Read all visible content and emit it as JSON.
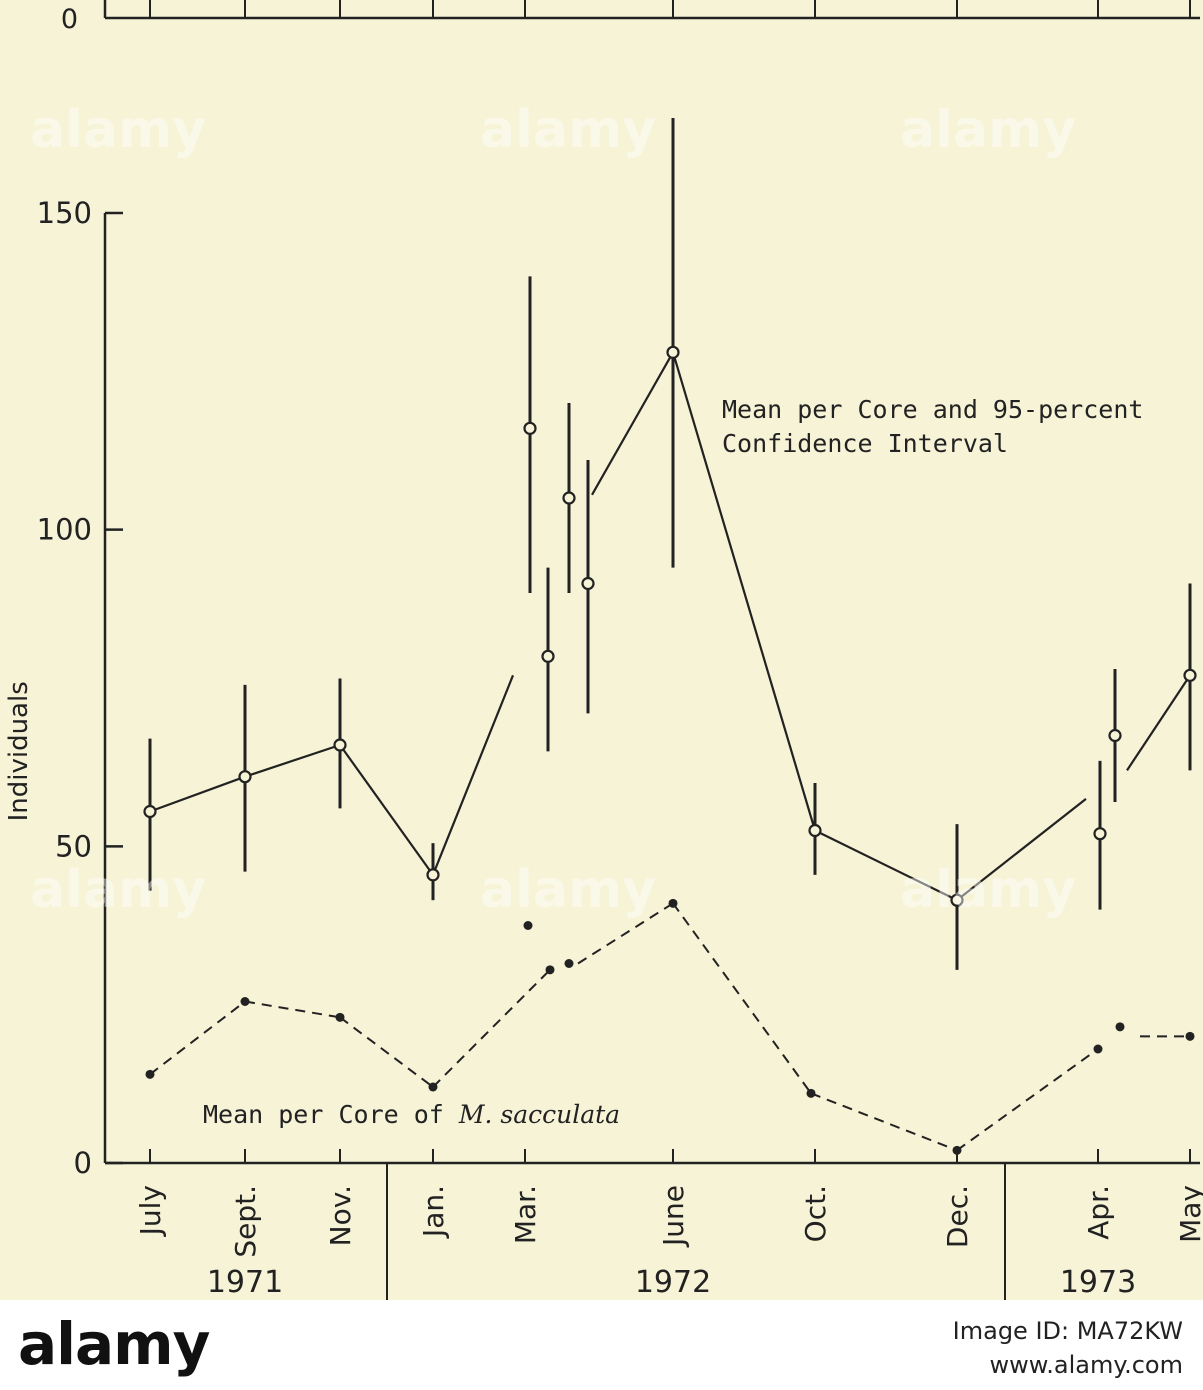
{
  "chart_data": {
    "type": "line",
    "ylabel": "Individuals",
    "ylim": [
      0,
      150
    ],
    "yticks": [
      0,
      50,
      100,
      150
    ],
    "top_axis_zero_label": "0",
    "categories": [
      "July",
      "Sept.",
      "Nov.",
      "Jan.",
      "Mar.",
      "June",
      "Oct.",
      "Dec.",
      "Apr.",
      "May"
    ],
    "years": [
      "1971",
      "1972",
      "1973"
    ],
    "series": [
      {
        "name": "Mean per Core and 95-percent Confidence Interval",
        "style": "solid-with-open-circles",
        "points": [
          {
            "x": "July",
            "y": 55.5,
            "low": 43,
            "high": 67
          },
          {
            "x": "Sept.",
            "y": 61,
            "low": 46,
            "high": 75.5
          },
          {
            "x": "Nov.",
            "y": 66,
            "low": 56,
            "high": 76.5
          },
          {
            "x": "Jan.",
            "y": 45.5,
            "low": 41.5,
            "high": 50.5
          },
          {
            "x": "Mar.",
            "y": 116,
            "low": 90,
            "high": 140
          },
          {
            "x": "Mar.",
            "y": 80,
            "low": 65,
            "high": 94
          },
          {
            "x": "Mar.",
            "y": 105,
            "low": 90,
            "high": 120
          },
          {
            "x": "Mar.",
            "y": 91.5,
            "low": 71,
            "high": 111
          },
          {
            "x": "June",
            "y": 128,
            "low": 94,
            "high": 165
          },
          {
            "x": "Oct.",
            "y": 52.5,
            "low": 45.5,
            "high": 60
          },
          {
            "x": "Dec.",
            "y": 41.5,
            "low": 30.5,
            "high": 53.5
          },
          {
            "x": "Apr.",
            "y": 52,
            "low": 40,
            "high": 63.5
          },
          {
            "x": "Apr.",
            "y": 67.5,
            "low": 57,
            "high": 78
          },
          {
            "x": "May",
            "y": 77,
            "low": 62,
            "high": 91.5
          }
        ]
      },
      {
        "name": "Mean per Core of M. sacculata",
        "style": "dashed-with-dots",
        "points": [
          {
            "x": "July",
            "y": 14
          },
          {
            "x": "Sept.",
            "y": 25.5
          },
          {
            "x": "Nov.",
            "y": 23
          },
          {
            "x": "Jan.",
            "y": 12
          },
          {
            "x": "Mar.",
            "y": 37.5
          },
          {
            "x": "Mar.",
            "y": 30.5
          },
          {
            "x": "Mar.",
            "y": 31.5
          },
          {
            "x": "June",
            "y": 41
          },
          {
            "x": "Oct.",
            "y": 11
          },
          {
            "x": "Dec.",
            "y": 2
          },
          {
            "x": "Apr.",
            "y": 18
          },
          {
            "x": "Apr.",
            "y": 21.5
          },
          {
            "x": "May",
            "y": 20
          }
        ]
      }
    ],
    "annotations": {
      "ci_label_line1": "Mean per Core and 95-percent",
      "ci_label_line2": "Confidence Interval",
      "sacc_label_prefix": "Mean per Core of ",
      "sacc_label_italic": "M. sacculata"
    },
    "colors": {
      "ink": "#222222",
      "background": "#f6f3d6"
    }
  },
  "footer": {
    "logo_text": "alamy",
    "image_id_label": "Image ID: MA72KW",
    "url": "www.alamy.com"
  },
  "watermark": "alamy"
}
